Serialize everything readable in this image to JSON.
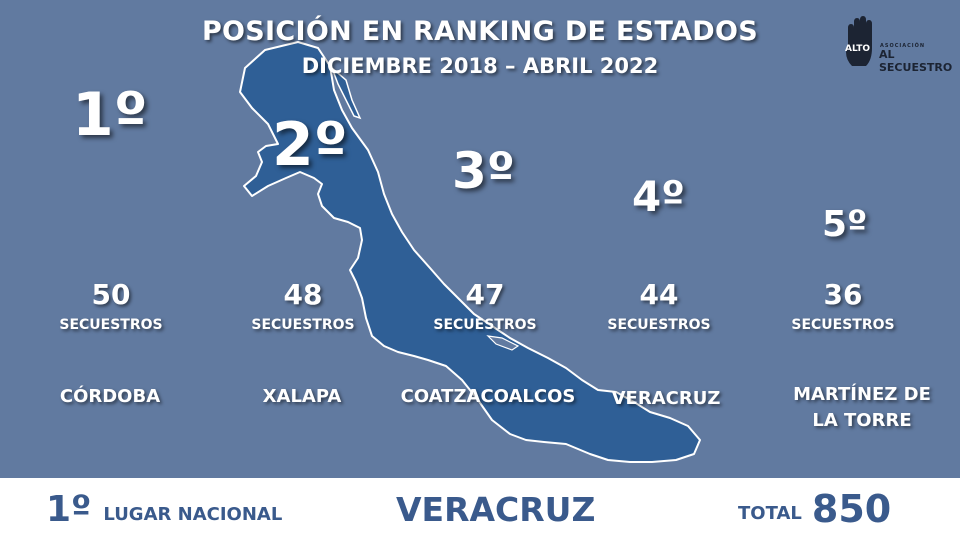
{
  "header": {
    "title": "POSICIÓN EN RANKING DE ESTADOS",
    "subtitle": "DICIEMBRE 2018 – ABRIL 2022"
  },
  "logo": {
    "word_alto": "ALTO",
    "line_small": "ASOCIACIÓN",
    "line_main": "AL SECUESTRO",
    "icon": "hand-stop-icon"
  },
  "ranking": [
    {
      "rank": "1º",
      "count": "50",
      "unit": "SECUESTROS",
      "city": "CÓRDOBA"
    },
    {
      "rank": "2º",
      "count": "48",
      "unit": "SECUESTROS",
      "city": "XALAPA"
    },
    {
      "rank": "3º",
      "count": "47",
      "unit": "SECUESTROS",
      "city": "COATZACOALCOS"
    },
    {
      "rank": "4º",
      "count": "44",
      "unit": "SECUESTROS",
      "city": "VERACRUZ"
    },
    {
      "rank": "5º",
      "count": "36",
      "unit": "SECUESTROS",
      "city_line1": "MARTÍNEZ DE",
      "city_line2": "LA TORRE"
    }
  ],
  "footer": {
    "national_rank": "1º",
    "national_label": "LUGAR NACIONAL",
    "state": "VERACRUZ",
    "total_label": "TOTAL",
    "total_value": "850"
  },
  "colors": {
    "background": "#617aa0",
    "state_fill": "#2f5f96",
    "footer_text": "#3a5a8c",
    "footer_bg": "#ffffff"
  },
  "map": {
    "icon": "veracruz-state-map"
  }
}
